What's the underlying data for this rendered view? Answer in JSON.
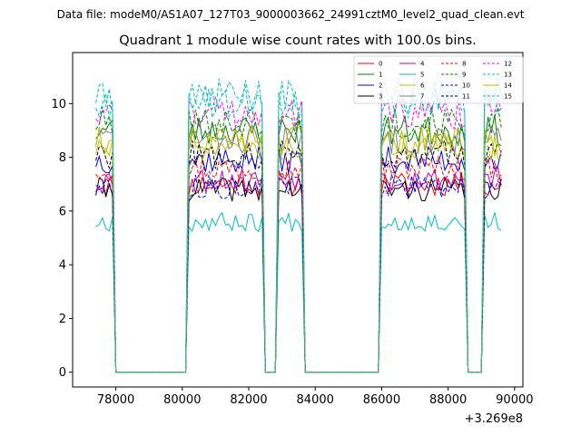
{
  "chart_data": {
    "type": "line",
    "suptitle": "Data file: modeM0/AS1A07_127T03_9000003662_24991cztM0_level2_quad_clean.evt",
    "title": "Quadrant 1 module wise count rates with 100.0s bins.",
    "xlabel": "",
    "ylabel": "",
    "x_offset_label": "+3.269e8",
    "xlim": [
      76700,
      90250
    ],
    "ylim": [
      -0.55,
      11.9
    ],
    "xticks": [
      78000,
      80000,
      82000,
      84000,
      86000,
      88000,
      90000
    ],
    "xtick_labels": [
      "78000",
      "80000",
      "82000",
      "84000",
      "86000",
      "88000",
      "90000"
    ],
    "yticks": [
      0,
      2,
      4,
      6,
      8,
      10
    ],
    "ytick_labels": [
      "0",
      "2",
      "4",
      "6",
      "8",
      "10"
    ],
    "grid": false,
    "legend_location": "top-right",
    "legend_columns": 4,
    "bin_width_s": 100,
    "x_start": 77400,
    "gti_segments": [
      {
        "start": 77400,
        "end": 77900
      },
      {
        "start": 80200,
        "end": 82400
      },
      {
        "start": 82900,
        "end": 83600
      },
      {
        "start": 86000,
        "end": 88500
      },
      {
        "start": 89100,
        "end": 89600
      }
    ],
    "series": [
      {
        "name": "0",
        "color": "#ff0000",
        "style": "solid",
        "level": 7.0,
        "seed": 11
      },
      {
        "name": "1",
        "color": "#008000",
        "style": "solid",
        "level": 9.0,
        "seed": 23
      },
      {
        "name": "2",
        "color": "#0000ff",
        "style": "solid",
        "level": 7.9,
        "seed": 37
      },
      {
        "name": "3",
        "color": "#000000",
        "style": "solid",
        "level": 6.8,
        "seed": 41
      },
      {
        "name": "4",
        "color": "#bf00bf",
        "style": "solid",
        "level": 7.2,
        "seed": 53
      },
      {
        "name": "5",
        "color": "#00bfbf",
        "style": "solid",
        "level": 5.6,
        "seed": 67
      },
      {
        "name": "6",
        "color": "#bfbf00",
        "style": "solid",
        "level": 8.4,
        "seed": 71
      },
      {
        "name": "7",
        "color": "#808080",
        "style": "solid",
        "level": 8.7,
        "seed": 83
      },
      {
        "name": "8",
        "color": "#ff0000",
        "style": "dashed",
        "level": 7.6,
        "seed": 97
      },
      {
        "name": "9",
        "color": "#008000",
        "style": "dashed",
        "level": 9.3,
        "seed": 101
      },
      {
        "name": "10",
        "color": "#0000ff",
        "style": "dashed",
        "level": 6.9,
        "seed": 113
      },
      {
        "name": "11",
        "color": "#000000",
        "style": "dashed",
        "level": 8.1,
        "seed": 127
      },
      {
        "name": "12",
        "color": "#ff00ff",
        "style": "dashed",
        "level": 9.7,
        "seed": 131
      },
      {
        "name": "13",
        "color": "#00bfbf",
        "style": "dashed",
        "level": 10.3,
        "seed": 149
      },
      {
        "name": "14",
        "color": "#bfbf00",
        "style": "solid",
        "level": 8.6,
        "seed": 151
      },
      {
        "name": "15",
        "color": "#00bfbf",
        "style": "dashed",
        "level": 10.1,
        "seed": 163
      }
    ]
  }
}
